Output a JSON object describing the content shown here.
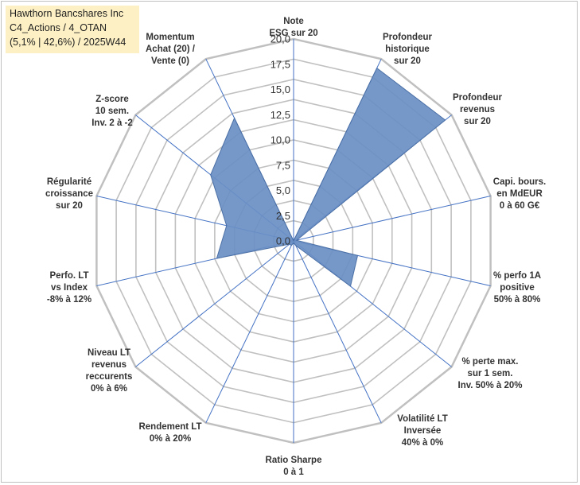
{
  "title_box": {
    "line1": "Hawthorn Bancshares Inc",
    "line2": "C4_Actions / 4_OTAN",
    "line3": "(5,1% | 42,6%) / 2025W44"
  },
  "chart_data": {
    "type": "radar",
    "title": "Hawthorn Bancshares Inc",
    "rlim": [
      0,
      20
    ],
    "ticks": [
      "0,0",
      "2,5",
      "5,0",
      "7,5",
      "10,0",
      "12,5",
      "15,0",
      "17,5",
      "20,0"
    ],
    "tick_values": [
      0,
      2.5,
      5,
      7.5,
      10,
      12.5,
      15,
      17.5,
      20
    ],
    "grid_levels": [
      2,
      4,
      6,
      8,
      10,
      12,
      14,
      16,
      18,
      20
    ],
    "colors": {
      "fill": "#6a8fc4",
      "stroke": "#4a6fa5",
      "grid": "#c0c0c0",
      "spoke": "#4472c4"
    },
    "axes": [
      {
        "label": [
          "Note",
          "ESG sur 20"
        ],
        "value": 0
      },
      {
        "label": [
          "Profondeur",
          "historique",
          "sur 20"
        ],
        "value": 19
      },
      {
        "label": [
          "Profondeur",
          "revenus",
          "sur 20"
        ],
        "value": 19.2
      },
      {
        "label": [
          "Capi. bours.",
          "en MdEUR",
          "0 à 60 G€"
        ],
        "value": 0.3
      },
      {
        "label": [
          "% perfo 1A",
          "positive",
          "50% à 80%"
        ],
        "value": 6.5
      },
      {
        "label": [
          "% perte max.",
          "sur 1 sem.",
          "Inv. 50% à 20%"
        ],
        "value": 7.2
      },
      {
        "label": [
          "Volatilité LT",
          "Inversée",
          "40% à 0%"
        ],
        "value": 0.5
      },
      {
        "label": [
          "Ratio Sharpe",
          "0 à 1"
        ],
        "value": 0.2
      },
      {
        "label": [
          "Rendement LT",
          "0% à 20%"
        ],
        "value": 0.5
      },
      {
        "label": [
          "Niveau LT",
          "revenus",
          "reccurents",
          "0% à 6%"
        ],
        "value": 0.5
      },
      {
        "label": [
          "Perfo. LT",
          "vs Index",
          "-8% à 12%"
        ],
        "value": 7.8
      },
      {
        "label": [
          "Régularité",
          "croissance",
          "sur 20"
        ],
        "value": 6.8
      },
      {
        "label": [
          "Z-score",
          "10 sem.",
          "Inv. 2 à -2"
        ],
        "value": 10.5
      },
      {
        "label": [
          "Momentum",
          "Achat (20) /",
          "Vente (0)"
        ],
        "value": 13.5
      }
    ]
  }
}
